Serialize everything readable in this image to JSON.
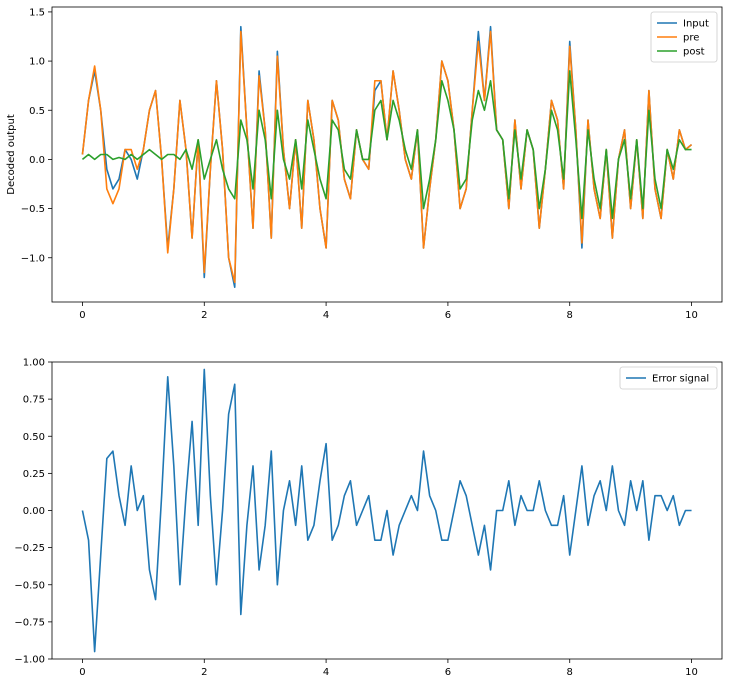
{
  "chart_data": [
    {
      "type": "line",
      "title": "",
      "xlabel": "",
      "ylabel": "Decoded output",
      "xlim": [
        -0.5,
        10.5
      ],
      "ylim": [
        -1.45,
        1.55
      ],
      "xticks": [
        0,
        2,
        4,
        6,
        8,
        10
      ],
      "yticks": [
        -1.0,
        -0.5,
        0.0,
        0.5,
        1.0,
        1.5
      ],
      "ytick_labels": [
        "−1.0",
        "−0.5",
        "0.0",
        "0.5",
        "1.0",
        "1.5"
      ],
      "legend": {
        "position": "top-right",
        "entries": [
          "Input",
          "pre",
          "post"
        ]
      },
      "x": [
        0.0,
        0.1,
        0.2,
        0.3,
        0.4,
        0.5,
        0.6,
        0.7,
        0.8,
        0.9,
        1.0,
        1.1,
        1.2,
        1.3,
        1.4,
        1.5,
        1.6,
        1.7,
        1.8,
        1.9,
        2.0,
        2.1,
        2.2,
        2.3,
        2.4,
        2.5,
        2.6,
        2.7,
        2.8,
        2.9,
        3.0,
        3.1,
        3.2,
        3.3,
        3.4,
        3.5,
        3.6,
        3.7,
        3.8,
        3.9,
        4.0,
        4.1,
        4.2,
        4.3,
        4.4,
        4.5,
        4.6,
        4.7,
        4.8,
        4.9,
        5.0,
        5.1,
        5.2,
        5.3,
        5.4,
        5.5,
        5.6,
        5.7,
        5.8,
        5.9,
        6.0,
        6.1,
        6.2,
        6.3,
        6.4,
        6.5,
        6.6,
        6.7,
        6.8,
        6.9,
        7.0,
        7.1,
        7.2,
        7.3,
        7.4,
        7.5,
        7.6,
        7.7,
        7.8,
        7.9,
        8.0,
        8.1,
        8.2,
        8.3,
        8.4,
        8.5,
        8.6,
        8.7,
        8.8,
        8.9,
        9.0,
        9.1,
        9.2,
        9.3,
        9.4,
        9.5,
        9.6,
        9.7,
        9.8,
        9.9,
        10.0
      ],
      "series": [
        {
          "name": "Input",
          "color": "#1f77b4",
          "values": [
            0.05,
            0.6,
            0.9,
            0.5,
            -0.1,
            -0.3,
            -0.2,
            0.1,
            0.0,
            -0.2,
            0.1,
            0.5,
            0.7,
            0.0,
            -0.9,
            -0.3,
            0.6,
            0.1,
            -0.8,
            0.2,
            -1.2,
            -0.1,
            0.8,
            0.1,
            -1.0,
            -1.3,
            1.35,
            0.3,
            -0.7,
            0.9,
            0.3,
            -0.8,
            1.1,
            0.1,
            -0.5,
            0.2,
            -0.7,
            0.6,
            0.2,
            -0.5,
            -0.9,
            0.6,
            0.4,
            -0.2,
            -0.4,
            0.3,
            0.0,
            -0.1,
            0.7,
            0.8,
            0.2,
            0.9,
            0.5,
            0.0,
            -0.2,
            0.3,
            -0.9,
            -0.3,
            0.2,
            1.0,
            0.8,
            0.3,
            -0.5,
            -0.3,
            0.5,
            1.3,
            0.6,
            1.35,
            0.3,
            0.2,
            -0.5,
            0.4,
            -0.3,
            0.3,
            0.1,
            -0.7,
            -0.1,
            0.6,
            0.4,
            -0.3,
            1.2,
            0.3,
            -0.9,
            0.4,
            -0.3,
            -0.6,
            0.1,
            -0.8,
            0.0,
            0.3,
            -0.5,
            0.2,
            -0.6,
            0.7,
            -0.3,
            -0.6,
            0.1,
            -0.2,
            0.3,
            0.1,
            0.15
          ]
        },
        {
          "name": "pre",
          "color": "#ff7f0e",
          "values": [
            0.05,
            0.6,
            0.95,
            0.5,
            -0.3,
            -0.45,
            -0.3,
            0.1,
            0.1,
            -0.1,
            0.1,
            0.5,
            0.7,
            0.0,
            -0.95,
            -0.3,
            0.6,
            0.1,
            -0.8,
            0.2,
            -1.15,
            -0.1,
            0.8,
            0.1,
            -1.0,
            -1.25,
            1.3,
            0.3,
            -0.7,
            0.85,
            0.3,
            -0.8,
            1.05,
            0.1,
            -0.5,
            0.2,
            -0.7,
            0.6,
            0.2,
            -0.5,
            -0.9,
            0.6,
            0.4,
            -0.2,
            -0.4,
            0.3,
            0.0,
            -0.1,
            0.8,
            0.8,
            0.2,
            0.9,
            0.5,
            0.0,
            -0.2,
            0.3,
            -0.9,
            -0.3,
            0.2,
            1.0,
            0.8,
            0.3,
            -0.5,
            -0.3,
            0.5,
            1.2,
            0.6,
            1.3,
            0.3,
            0.2,
            -0.5,
            0.4,
            -0.3,
            0.3,
            0.1,
            -0.7,
            -0.1,
            0.6,
            0.4,
            -0.3,
            1.15,
            0.3,
            -0.85,
            0.4,
            -0.3,
            -0.6,
            0.1,
            -0.8,
            0.0,
            0.3,
            -0.5,
            0.2,
            -0.6,
            0.7,
            -0.3,
            -0.6,
            0.1,
            -0.2,
            0.3,
            0.1,
            0.15
          ]
        },
        {
          "name": "post",
          "color": "#2ca02c",
          "values": [
            0.0,
            0.05,
            0.0,
            0.05,
            0.05,
            0.0,
            0.02,
            0.0,
            0.05,
            0.0,
            0.05,
            0.1,
            0.05,
            0.0,
            0.05,
            0.05,
            0.0,
            0.1,
            -0.1,
            0.2,
            -0.2,
            0.0,
            0.2,
            -0.1,
            -0.3,
            -0.4,
            0.4,
            0.2,
            -0.3,
            0.5,
            0.2,
            -0.4,
            0.5,
            0.0,
            -0.2,
            0.2,
            -0.3,
            0.4,
            0.1,
            -0.2,
            -0.4,
            0.4,
            0.3,
            -0.1,
            -0.2,
            0.3,
            0.0,
            0.0,
            0.5,
            0.6,
            0.2,
            0.6,
            0.4,
            0.1,
            -0.1,
            0.3,
            -0.5,
            -0.2,
            0.2,
            0.8,
            0.6,
            0.3,
            -0.3,
            -0.2,
            0.4,
            0.7,
            0.5,
            0.8,
            0.3,
            0.2,
            -0.4,
            0.3,
            -0.2,
            0.3,
            0.1,
            -0.5,
            -0.1,
            0.5,
            0.3,
            -0.2,
            0.9,
            0.2,
            -0.6,
            0.3,
            -0.2,
            -0.5,
            0.1,
            -0.6,
            0.0,
            0.2,
            -0.4,
            0.2,
            -0.5,
            0.5,
            -0.2,
            -0.5,
            0.1,
            -0.1,
            0.2,
            0.1,
            0.1
          ]
        }
      ]
    },
    {
      "type": "line",
      "title": "",
      "xlabel": "",
      "ylabel": "",
      "xlim": [
        -0.5,
        10.5
      ],
      "ylim": [
        -1.0,
        1.0
      ],
      "xticks": [
        0,
        2,
        4,
        6,
        8,
        10
      ],
      "yticks": [
        -1.0,
        -0.75,
        -0.5,
        -0.25,
        0.0,
        0.25,
        0.5,
        0.75,
        1.0
      ],
      "ytick_labels": [
        "−1.00",
        "−0.75",
        "−0.50",
        "−0.25",
        "0.00",
        "0.25",
        "0.50",
        "0.75",
        "1.00"
      ],
      "legend": {
        "position": "top-right",
        "entries": [
          "Error signal"
        ]
      },
      "x": [
        0.0,
        0.1,
        0.2,
        0.3,
        0.4,
        0.5,
        0.6,
        0.7,
        0.8,
        0.9,
        1.0,
        1.1,
        1.2,
        1.3,
        1.4,
        1.5,
        1.6,
        1.7,
        1.8,
        1.9,
        2.0,
        2.1,
        2.2,
        2.3,
        2.4,
        2.5,
        2.6,
        2.7,
        2.8,
        2.9,
        3.0,
        3.1,
        3.2,
        3.3,
        3.4,
        3.5,
        3.6,
        3.7,
        3.8,
        3.9,
        4.0,
        4.1,
        4.2,
        4.3,
        4.4,
        4.5,
        4.6,
        4.7,
        4.8,
        4.9,
        5.0,
        5.1,
        5.2,
        5.3,
        5.4,
        5.5,
        5.6,
        5.7,
        5.8,
        5.9,
        6.0,
        6.1,
        6.2,
        6.3,
        6.4,
        6.5,
        6.6,
        6.7,
        6.8,
        6.9,
        7.0,
        7.1,
        7.2,
        7.3,
        7.4,
        7.5,
        7.6,
        7.7,
        7.8,
        7.9,
        8.0,
        8.1,
        8.2,
        8.3,
        8.4,
        8.5,
        8.6,
        8.7,
        8.8,
        8.9,
        9.0,
        9.1,
        9.2,
        9.3,
        9.4,
        9.5,
        9.6,
        9.7,
        9.8,
        9.9,
        10.0
      ],
      "series": [
        {
          "name": "Error signal",
          "color": "#1f77b4",
          "values": [
            0.0,
            -0.2,
            -0.95,
            -0.3,
            0.35,
            0.4,
            0.1,
            -0.1,
            0.3,
            0.0,
            0.1,
            -0.4,
            -0.6,
            0.1,
            0.9,
            0.3,
            -0.5,
            0.1,
            0.6,
            -0.1,
            0.95,
            0.1,
            -0.5,
            0.0,
            0.65,
            0.85,
            -0.7,
            -0.1,
            0.3,
            -0.4,
            -0.1,
            0.4,
            -0.5,
            0.0,
            0.2,
            -0.1,
            0.3,
            -0.2,
            -0.1,
            0.2,
            0.45,
            -0.2,
            -0.1,
            0.1,
            0.2,
            -0.1,
            0.0,
            0.1,
            -0.2,
            -0.2,
            0.0,
            -0.3,
            -0.1,
            0.0,
            0.1,
            0.0,
            0.4,
            0.1,
            0.0,
            -0.2,
            -0.2,
            0.0,
            0.2,
            0.1,
            -0.1,
            -0.3,
            -0.1,
            -0.4,
            0.0,
            0.0,
            0.2,
            -0.1,
            0.1,
            0.0,
            0.0,
            0.2,
            0.0,
            -0.1,
            -0.1,
            0.1,
            -0.3,
            0.0,
            0.3,
            -0.1,
            0.1,
            0.2,
            0.0,
            0.3,
            0.0,
            -0.1,
            0.2,
            0.0,
            0.2,
            -0.2,
            0.1,
            0.1,
            0.0,
            0.1,
            -0.1,
            0.0,
            0.0
          ]
        }
      ]
    }
  ]
}
